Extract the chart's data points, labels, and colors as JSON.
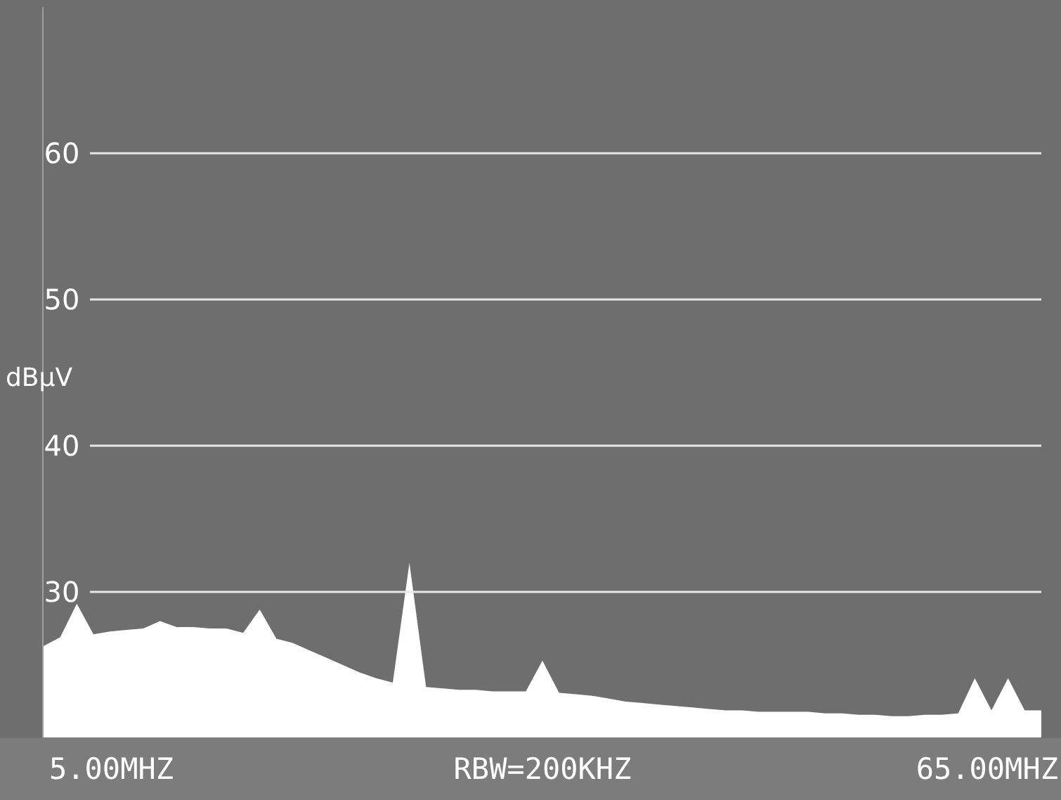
{
  "chart_data": {
    "type": "area",
    "ylabel": "dBμV",
    "ylim": [
      20,
      70
    ],
    "yticks": [
      30,
      40,
      50,
      60
    ],
    "grid": "y",
    "annotations": [
      "5.00MHZ",
      "RBW=200KHZ",
      "65.00MHZ"
    ],
    "categories": [
      null,
      null,
      null,
      null,
      null,
      null,
      null,
      null,
      null,
      null,
      null,
      null,
      null,
      null,
      null,
      null,
      null,
      null,
      null,
      null,
      null,
      null,
      null,
      null,
      null,
      null,
      null,
      null,
      null,
      null,
      null,
      null,
      null,
      null,
      null,
      null,
      null,
      null,
      null,
      null,
      null,
      null,
      null,
      null,
      null,
      null,
      null,
      null,
      null,
      null,
      null,
      null,
      null,
      null,
      null,
      null,
      null,
      null,
      null,
      null,
      null
    ],
    "series": [
      {
        "color": "#ffffff",
        "values": [
          26.3,
          26.9,
          29.2,
          27.1,
          27.3,
          27.4,
          27.5,
          28.0,
          27.6,
          27.6,
          27.5,
          27.5,
          27.2,
          28.8,
          26.8,
          26.5,
          26.0,
          25.5,
          25.0,
          24.5,
          24.1,
          23.8,
          32.0,
          23.5,
          23.4,
          23.3,
          23.3,
          23.2,
          23.2,
          23.2,
          25.3,
          23.1,
          23.0,
          22.9,
          22.7,
          22.5,
          22.4,
          22.3,
          22.2,
          22.1,
          22.0,
          21.9,
          21.9,
          21.8,
          21.8,
          21.8,
          21.8,
          21.7,
          21.7,
          21.6,
          21.6,
          21.5,
          21.5,
          21.6,
          21.6,
          21.7,
          24.1,
          21.9,
          24.1,
          21.9,
          21.9
        ]
      }
    ]
  }
}
